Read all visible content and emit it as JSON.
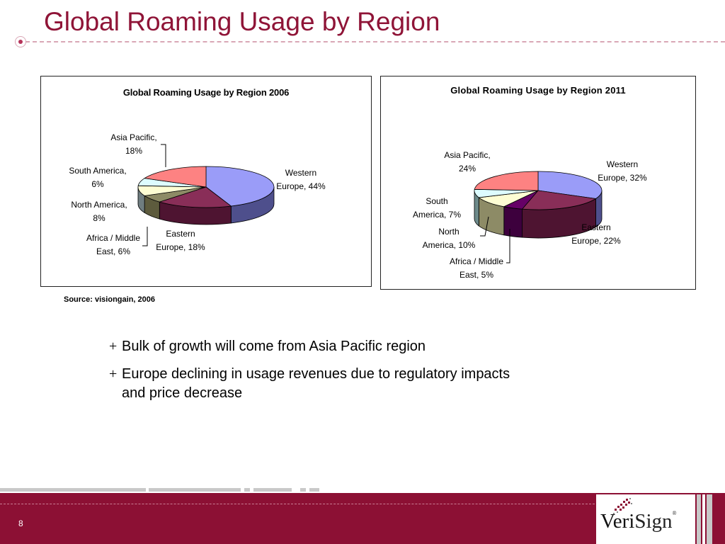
{
  "slide": {
    "title": "Global Roaming Usage by Region",
    "source": "Source: visiongain, 2006",
    "bullet_marker": "+",
    "bullets": [
      "Bulk of growth will come from Asia Pacific region",
      "Europe declining in usage revenues due to regulatory impacts and price decrease"
    ],
    "page_number": "8",
    "logo": {
      "part1": "Veri",
      "part2": "Sign",
      "reg": "®"
    }
  },
  "colors": {
    "title": "#8f1437",
    "footer": "#8c1034",
    "western_europe": "#9a9cf8",
    "eastern_europe": "#892e58",
    "africa_middle_east": "#8d8b66",
    "north_america": "#fdfdd3",
    "south_america": "#ddfcff",
    "asia_pacific": "#fd8282",
    "africa_2011": "#660066"
  },
  "chart_data": [
    {
      "type": "pie",
      "title": "Global Roaming Usage by Region 2006",
      "slices": [
        {
          "label": "Western Europe, 44%",
          "lines": [
            "Western",
            "Europe, 44%"
          ],
          "value": 44,
          "color": "#9a9cf8",
          "side": "#4e4f8c"
        },
        {
          "label": "Eastern Europe, 18%",
          "lines": [
            "Eastern",
            "Europe, 18%"
          ],
          "value": 18,
          "color": "#892e58",
          "side": "#4e1431"
        },
        {
          "label": "Africa / Middle East, 6%",
          "lines": [
            "Africa / Middle",
            "East, 6%"
          ],
          "value": 6,
          "color": "#8d8b66",
          "side": "#5d5b3d"
        },
        {
          "label": "North America, 8%",
          "lines": [
            "North America,",
            "8%"
          ],
          "value": 8,
          "color": "#fdfdd3",
          "side": "#6f7d80"
        },
        {
          "label": "South America, 6%",
          "lines": [
            "South America,",
            "6%"
          ],
          "value": 6,
          "color": "#ddfcff",
          "side": "#5e8085"
        },
        {
          "label": "Asia Pacific, 18%",
          "lines": [
            "Asia Pacific,",
            "18%"
          ],
          "value": 18,
          "color": "#fd8282",
          "side": "#a14b4b"
        }
      ]
    },
    {
      "type": "pie",
      "title": "Global Roaming Usage by Region 2011",
      "slices": [
        {
          "label": "Western Europe, 32%",
          "lines": [
            "Western",
            "Europe, 32%"
          ],
          "value": 32,
          "color": "#9a9cf8",
          "side": "#4e4f8c"
        },
        {
          "label": "Eastern Europe, 22%",
          "lines": [
            "Eastern",
            "Europe, 22%"
          ],
          "value": 22,
          "color": "#892e58",
          "side": "#4e1431"
        },
        {
          "label": "Africa / Middle East, 5%",
          "lines": [
            "Africa / Middle",
            "East, 5%"
          ],
          "value": 5,
          "color": "#660066",
          "side": "#3d003d"
        },
        {
          "label": "North America, 10%",
          "lines": [
            "North",
            "America, 10%"
          ],
          "value": 10,
          "color": "#fdfdd3",
          "side": "#8d8b66"
        },
        {
          "label": "South America, 7%",
          "lines": [
            "South",
            "America, 7%"
          ],
          "value": 7,
          "color": "#ddfcff",
          "side": "#6d8a8a"
        },
        {
          "label": "Asia Pacific, 24%",
          "lines": [
            "Asia Pacific,",
            "24%"
          ],
          "value": 24,
          "color": "#fd8282",
          "side": "#a14b4b"
        }
      ]
    }
  ]
}
